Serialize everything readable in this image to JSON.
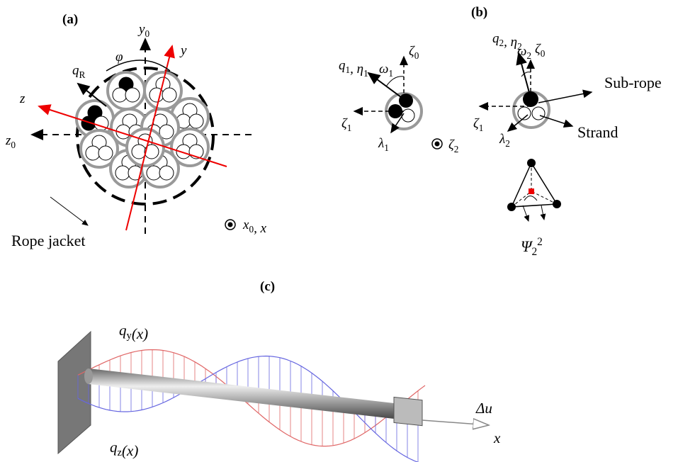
{
  "labels": {
    "panel_a": "(a)",
    "y0": [
      {
        "t": "y",
        "sub": "0"
      }
    ],
    "y": "y",
    "phi": "φ",
    "q_R": [
      {
        "t": "q",
        "sub": "R"
      }
    ],
    "z": "z",
    "z0": [
      {
        "t": "z",
        "sub": "0"
      }
    ],
    "rope_jacket": "Rope jacket",
    "x0_x": [
      {
        "t": "x",
        "sub": "0"
      },
      {
        "t": ", x"
      }
    ],
    "panel_b": "(b)",
    "q1_eta1": [
      {
        "t": "q",
        "sub": "1"
      },
      {
        "t": ", η",
        "sub": "1"
      }
    ],
    "omega1": [
      {
        "t": "ω",
        "sub": "1"
      }
    ],
    "zeta0_a": [
      {
        "t": "ζ",
        "sub": "0"
      }
    ],
    "zeta1_a": [
      {
        "t": "ζ",
        "sub": "1"
      }
    ],
    "lambda1": [
      {
        "t": "λ",
        "sub": "1"
      }
    ],
    "zeta2": [
      {
        "t": "ζ",
        "sub": "2"
      }
    ],
    "q2_eta2": [
      {
        "t": "q",
        "sub": "2"
      },
      {
        "t": ", η",
        "sub": "2"
      }
    ],
    "omega2": [
      {
        "t": "ω",
        "sub": "2"
      }
    ],
    "zeta0_b": [
      {
        "t": "ζ",
        "sub": "0"
      }
    ],
    "sub_rope": "Sub-rope",
    "zeta1_b": [
      {
        "t": "ζ",
        "sub": "1"
      }
    ],
    "lambda2": [
      {
        "t": "λ",
        "sub": "2"
      }
    ],
    "strand": "Strand",
    "psi": [
      {
        "t": "Ψ",
        "sub": "2",
        "sup": "2"
      }
    ],
    "panel_c": "(c)",
    "qy": [
      {
        "t": "q",
        "sub": "y"
      },
      {
        "t": "(x)"
      }
    ],
    "qz": [
      {
        "t": "q",
        "sub": "z"
      },
      {
        "t": "(x)"
      }
    ],
    "delta_u": "Δu",
    "x": "x"
  }
}
